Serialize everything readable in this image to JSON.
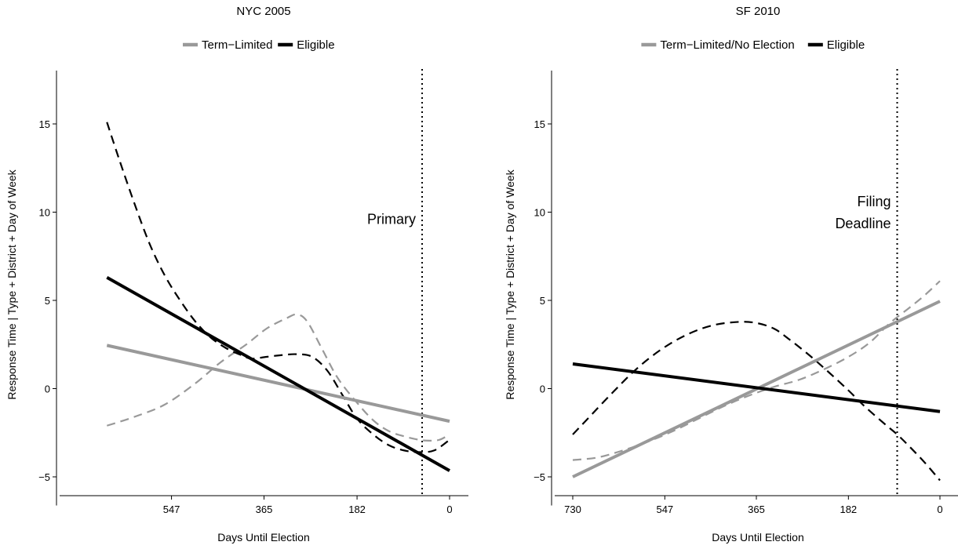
{
  "chart_data": [
    {
      "type": "line",
      "title": "NYC 2005",
      "xlabel": "Days Until Election",
      "ylabel": "Response Time | Type + District + Day of Week",
      "xlim": [
        0,
        730
      ],
      "x_reversed": true,
      "ylim": [
        -6,
        18
      ],
      "xticks": [
        547,
        365,
        182,
        0
      ],
      "yticks": [
        -5,
        0,
        5,
        10,
        15
      ],
      "legend": {
        "placement": "top",
        "entries": [
          {
            "label": "Term−Limited",
            "color": "#999999"
          },
          {
            "label": "Eligible",
            "color": "#000000"
          }
        ]
      },
      "annotations": [
        {
          "text": "Primary",
          "x": 54,
          "y": 9.6
        }
      ],
      "vline": {
        "x": 54,
        "style": "dotted"
      },
      "series": [
        {
          "name": "Term−Limited",
          "color": "#999999",
          "style": "solid",
          "x": [
            674,
            0
          ],
          "y": [
            2.45,
            -1.85
          ]
        },
        {
          "name": "Eligible",
          "color": "#000000",
          "style": "solid",
          "x": [
            674,
            0
          ],
          "y": [
            6.3,
            -4.65
          ]
        },
        {
          "color": "#999999",
          "style": "dashed",
          "x": [
            674,
            620,
            560,
            500,
            450,
            400,
            360,
            320,
            300,
            280,
            250,
            220,
            182,
            150,
            120,
            90,
            60,
            40,
            20,
            0
          ],
          "y": [
            -2.1,
            -1.6,
            -0.9,
            0.3,
            1.5,
            2.5,
            3.4,
            4.0,
            4.2,
            3.8,
            2.2,
            0.6,
            -0.8,
            -1.8,
            -2.4,
            -2.7,
            -2.9,
            -2.95,
            -2.9,
            -2.6
          ]
        },
        {
          "color": "#000000",
          "style": "dashed",
          "x": [
            674,
            650,
            620,
            590,
            560,
            530,
            500,
            470,
            440,
            410,
            390,
            360,
            330,
            300,
            270,
            240,
            210,
            182,
            150,
            120,
            90,
            60,
            30,
            0
          ],
          "y": [
            15.1,
            13.0,
            10.5,
            8.2,
            6.4,
            5.0,
            3.8,
            2.9,
            2.3,
            1.9,
            1.7,
            1.8,
            1.9,
            1.95,
            1.8,
            1.0,
            -0.4,
            -1.7,
            -2.6,
            -3.2,
            -3.5,
            -3.6,
            -3.5,
            -2.9
          ]
        }
      ]
    },
    {
      "type": "line",
      "title": "SF 2010",
      "xlabel": "Days Until Election",
      "ylabel": "Response Time | Type + District + Day of Week",
      "xlim": [
        0,
        730
      ],
      "x_reversed": true,
      "ylim": [
        -6,
        18
      ],
      "xticks": [
        730,
        547,
        365,
        182,
        0
      ],
      "yticks": [
        -5,
        0,
        5,
        10,
        15
      ],
      "legend": {
        "placement": "top",
        "entries": [
          {
            "label": "Term−Limited/No Election",
            "color": "#999999"
          },
          {
            "label": "Eligible",
            "color": "#000000"
          }
        ]
      },
      "annotations": [
        {
          "text": "Filing",
          "x": 90,
          "y": 10.6
        },
        {
          "text": "Deadline",
          "x": 90,
          "y": 9.35
        }
      ],
      "vline": {
        "x": 85,
        "style": "dotted"
      },
      "series": [
        {
          "name": "Term−Limited/No Election",
          "color": "#999999",
          "style": "solid",
          "x": [
            730,
            0
          ],
          "y": [
            -5.0,
            4.95
          ]
        },
        {
          "name": "Eligible",
          "color": "#000000",
          "style": "solid",
          "x": [
            730,
            0
          ],
          "y": [
            1.4,
            -1.3
          ]
        },
        {
          "color": "#999999",
          "style": "dashed",
          "x": [
            730,
            680,
            630,
            580,
            530,
            480,
            430,
            380,
            330,
            280,
            230,
            182,
            140,
            100,
            60,
            30,
            0
          ],
          "y": [
            -4.05,
            -3.9,
            -3.5,
            -3.0,
            -2.4,
            -1.7,
            -1.0,
            -0.4,
            0.1,
            0.5,
            1.1,
            1.8,
            2.6,
            3.7,
            4.6,
            5.3,
            6.1
          ]
        },
        {
          "color": "#000000",
          "style": "dashed",
          "x": [
            730,
            700,
            650,
            600,
            550,
            500,
            450,
            400,
            365,
            330,
            300,
            260,
            220,
            182,
            150,
            110,
            85,
            60,
            30,
            0
          ],
          "y": [
            -2.6,
            -1.7,
            -0.2,
            1.2,
            2.3,
            3.1,
            3.6,
            3.78,
            3.72,
            3.4,
            2.8,
            1.9,
            0.9,
            -0.1,
            -1.0,
            -2.0,
            -2.6,
            -3.3,
            -4.2,
            -5.2
          ]
        }
      ]
    }
  ]
}
